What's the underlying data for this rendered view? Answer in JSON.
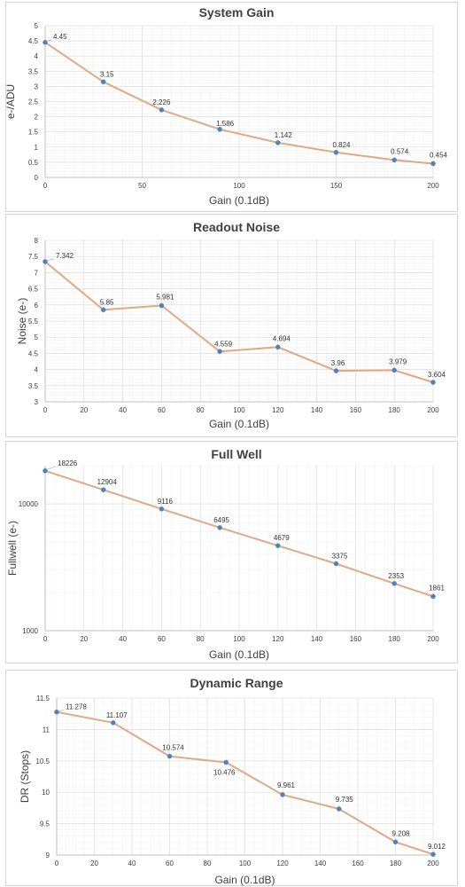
{
  "chart_data": [
    {
      "type": "line",
      "title": "System Gain",
      "xlabel": "Gain (0.1dB)",
      "ylabel": "e-/ADU",
      "xlim": [
        0,
        200
      ],
      "ylim": [
        0,
        5
      ],
      "yscale": "linear",
      "xticks": [
        0,
        50,
        100,
        150,
        200
      ],
      "yticks": [
        0,
        0.5,
        1,
        1.5,
        2,
        2.5,
        3,
        3.5,
        4,
        4.5,
        5
      ],
      "ytick_labels": [
        "0",
        "0.5",
        "1",
        "1.5",
        "2",
        "2.5",
        "3",
        "3.5",
        "4",
        "4.5",
        "5"
      ],
      "grid": true,
      "x": [
        0,
        30,
        60,
        90,
        120,
        150,
        180,
        200
      ],
      "y": [
        4.45,
        3.15,
        2.226,
        1.586,
        1.142,
        0.824,
        0.574,
        0.454
      ],
      "data_labels": [
        "4.45",
        "3.15",
        "2.226",
        "1.586",
        "1.142",
        "0.824",
        "0.574",
        "0.454"
      ]
    },
    {
      "type": "line",
      "title": "Readout Noise",
      "xlabel": "Gain (0.1dB)",
      "ylabel": "Noise (e-)",
      "xlim": [
        0,
        200
      ],
      "ylim": [
        3,
        8
      ],
      "yscale": "linear",
      "xticks": [
        0,
        20,
        40,
        60,
        80,
        100,
        120,
        140,
        160,
        180,
        200
      ],
      "yticks": [
        3,
        3.5,
        4,
        4.5,
        5,
        5.5,
        6,
        6.5,
        7,
        7.5,
        8
      ],
      "ytick_labels": [
        "3",
        "3.5",
        "4",
        "4.5",
        "5",
        "5.5",
        "6",
        "6.5",
        "7",
        "7.5",
        "8"
      ],
      "grid": true,
      "x": [
        0,
        30,
        60,
        90,
        120,
        150,
        180,
        200
      ],
      "y": [
        7.342,
        5.85,
        5.981,
        4.559,
        4.694,
        3.96,
        3.979,
        3.604
      ],
      "data_labels": [
        "7.342",
        "5.85",
        "5.981",
        "4.559",
        "4.694",
        "3.96",
        "3.979",
        "3.604"
      ]
    },
    {
      "type": "line",
      "title": "Full Well",
      "xlabel": "Gain (0.1dB)",
      "ylabel": "Fullwell (e-)",
      "xlim": [
        0,
        200
      ],
      "ylim": [
        1000,
        20000
      ],
      "yscale": "log",
      "xticks": [
        0,
        20,
        40,
        60,
        80,
        100,
        120,
        140,
        160,
        180,
        200
      ],
      "yticks": [
        1000,
        10000
      ],
      "ytick_labels": [
        "1000",
        "10000"
      ],
      "grid": true,
      "x": [
        0,
        30,
        60,
        90,
        120,
        150,
        180,
        200
      ],
      "y": [
        18226,
        12904,
        9116,
        6495,
        4679,
        3375,
        2353,
        1861
      ],
      "data_labels": [
        "18226",
        "12904",
        "9116",
        "6495",
        "4679",
        "3375",
        "2353",
        "1861"
      ]
    },
    {
      "type": "line",
      "title": "Dynamic Range",
      "xlabel": "Gain (0.1dB)",
      "ylabel": "DR (Stops)",
      "xlim": [
        0,
        200
      ],
      "ylim": [
        9,
        11.5
      ],
      "yscale": "linear",
      "xticks": [
        0,
        20,
        40,
        60,
        80,
        100,
        120,
        140,
        160,
        180,
        200
      ],
      "yticks": [
        9,
        9.5,
        10,
        10.5,
        11,
        11.5
      ],
      "ytick_labels": [
        "9",
        "9.5",
        "10",
        "10.5",
        "11",
        "11.5"
      ],
      "grid": true,
      "x": [
        0,
        30,
        60,
        90,
        120,
        150,
        180,
        200
      ],
      "y": [
        11.278,
        11.107,
        10.574,
        10.476,
        9.961,
        9.735,
        9.208,
        9.012
      ],
      "data_labels": [
        "11.278",
        "11.107",
        "10.574",
        "10.476",
        "9.961",
        "9.735",
        "9.208",
        "9.012"
      ]
    }
  ]
}
